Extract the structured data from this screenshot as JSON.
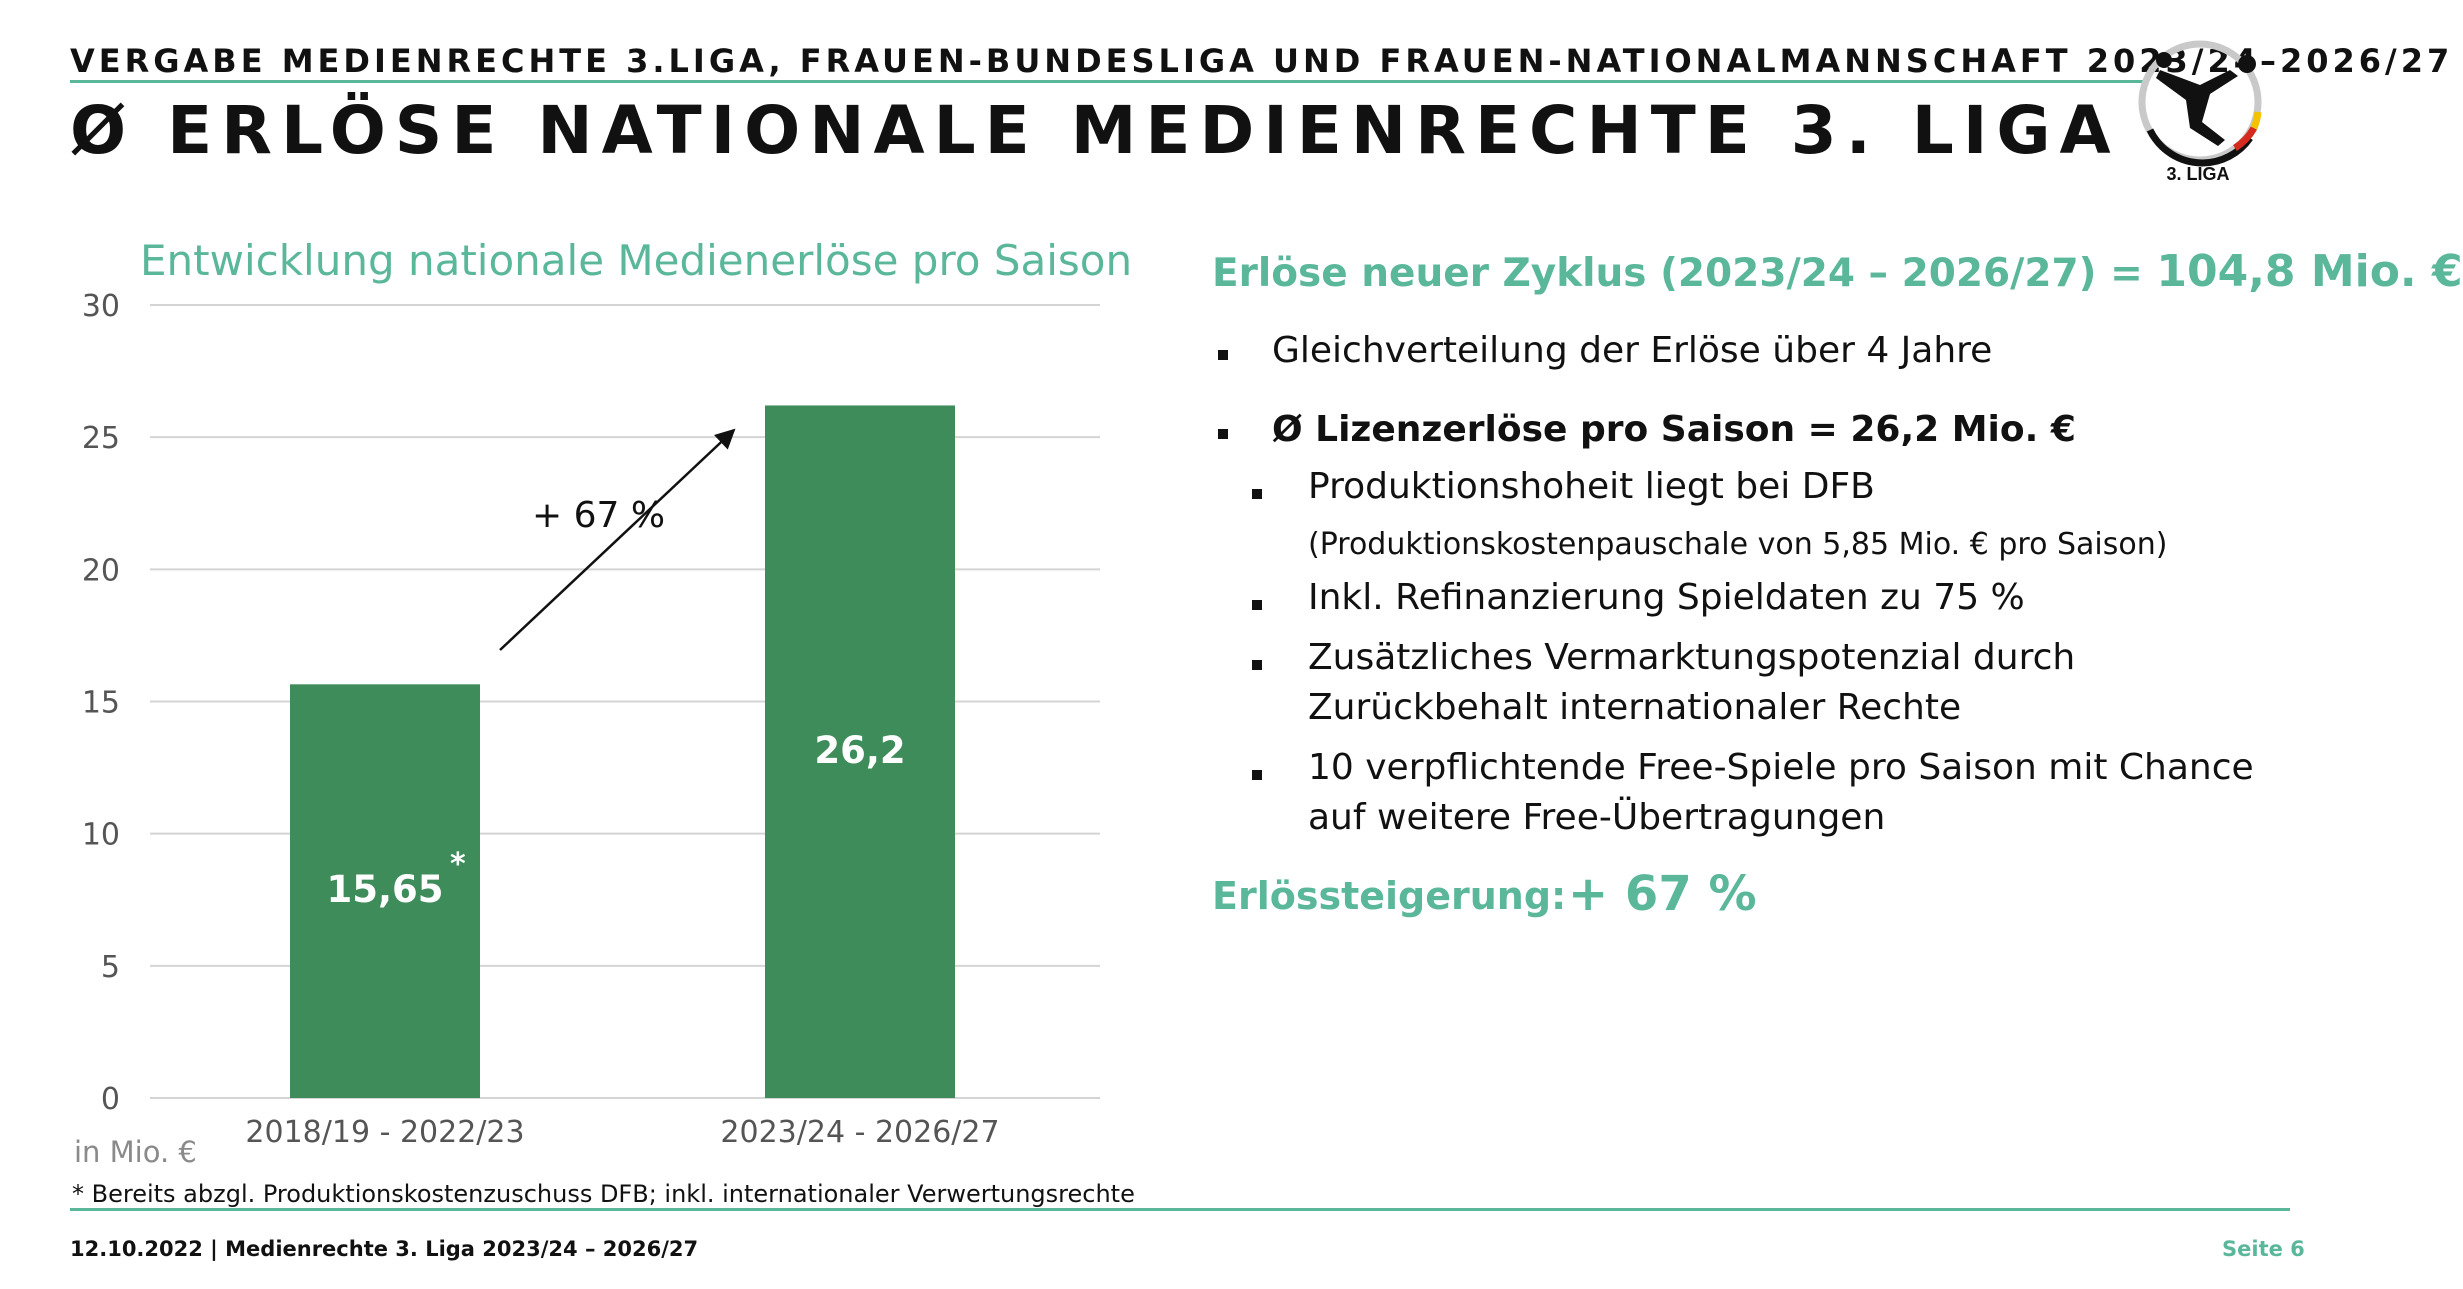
{
  "header": {
    "supertitle": "VERGABE MEDIENRECHTE 3.LIGA, FRAUEN-BUNDESLIGA UND FRAUEN-NATIONALMANNSCHAFT 2023/24–2026/27",
    "title": "Ø ERLÖSE NATIONALE MEDIENRECHTE 3. LIGA",
    "logo_text": "3. LIGA"
  },
  "chart_data": {
    "type": "bar",
    "title": "Entwicklung nationale Medienerlöse pro Saison",
    "categories": [
      "2018/19 - 2022/23",
      "2023/24 - 2026/27"
    ],
    "values": [
      15.65,
      26.2
    ],
    "value_labels": [
      "15,65",
      "26,2"
    ],
    "first_bar_marker": "*",
    "ylabel": "in Mio. €",
    "ylim": [
      0,
      30
    ],
    "yticks": [
      0,
      5,
      10,
      15,
      20,
      25,
      30
    ],
    "grid": true,
    "bar_color": "#3d8c5a",
    "annotation": "+ 67 %"
  },
  "footnote": "* Bereits abzgl. Produktionskostenzuschuss DFB; inkl. internationaler Verwertungsrechte",
  "right": {
    "headline_label": "Erlöse neuer Zyklus (2023/24 – 2026/27) =",
    "headline_value": "104,8 Mio. €",
    "bullets": {
      "b1": "Gleichverteilung der Erlöse über 4 Jahre",
      "b2": "Ø Lizenzerlöse pro Saison = 26,2 Mio. €",
      "s1": "Produktionshoheit liegt bei DFB",
      "s1_note": "(Produktionskostenpauschale von 5,85 Mio. € pro Saison)",
      "s2": "Inkl. Refinanzierung Spieldaten zu 75 %",
      "s3_l1": "Zusätzliches Vermarktungspotenzial durch",
      "s3_l2": "Zurückbehalt internationaler Rechte",
      "s4_l1": "10 verpflichtende Free-Spiele pro Saison mit Chance",
      "s4_l2": "auf weitere Free-Übertragungen"
    },
    "growth_label": "Erlössteigerung:",
    "growth_value": "+ 67 %"
  },
  "footer": {
    "left": "12.10.2022  | Medienrechte 3. Liga  2023/24 – 2026/27",
    "right": "Seite 6"
  },
  "colors": {
    "accent": "#5bb79a",
    "bar": "#3d8c5a"
  }
}
